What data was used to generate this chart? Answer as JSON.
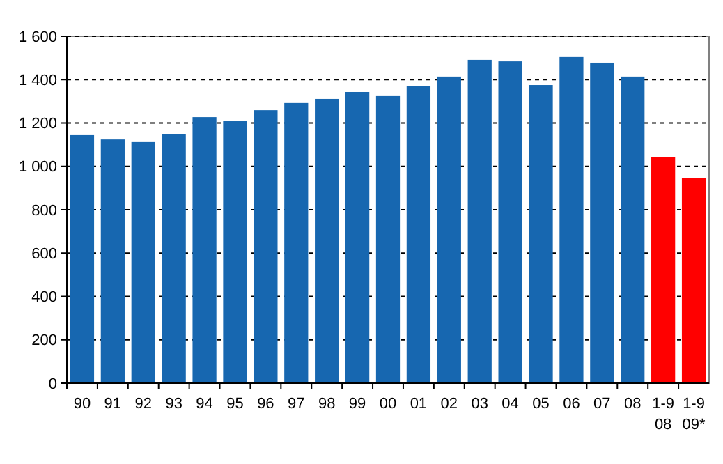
{
  "chart_data": {
    "type": "bar",
    "categories": [
      "90",
      "91",
      "92",
      "93",
      "94",
      "95",
      "96",
      "97",
      "98",
      "99",
      "00",
      "01",
      "02",
      "03",
      "04",
      "05",
      "06",
      "07",
      "08",
      "1-9\n08",
      "1-9\n09*"
    ],
    "values": [
      1144,
      1124,
      1112,
      1150,
      1227,
      1208,
      1259,
      1292,
      1311,
      1343,
      1324,
      1369,
      1414,
      1491,
      1484,
      1375,
      1504,
      1478,
      1414,
      1041,
      945
    ],
    "colors": [
      "#1767b0",
      "#1767b0",
      "#1767b0",
      "#1767b0",
      "#1767b0",
      "#1767b0",
      "#1767b0",
      "#1767b0",
      "#1767b0",
      "#1767b0",
      "#1767b0",
      "#1767b0",
      "#1767b0",
      "#1767b0",
      "#1767b0",
      "#1767b0",
      "#1767b0",
      "#1767b0",
      "#1767b0",
      "#ff0000",
      "#ff0000"
    ],
    "ylim": [
      0,
      1600
    ],
    "yticks": [
      0,
      200,
      400,
      600,
      800,
      {
        "value": 1000,
        "label": "1 000"
      },
      {
        "value": 1200,
        "label": "1 200"
      },
      {
        "value": 1400,
        "label": "1 400"
      },
      {
        "value": 1600,
        "label": "1 600"
      }
    ],
    "grid": "y"
  }
}
